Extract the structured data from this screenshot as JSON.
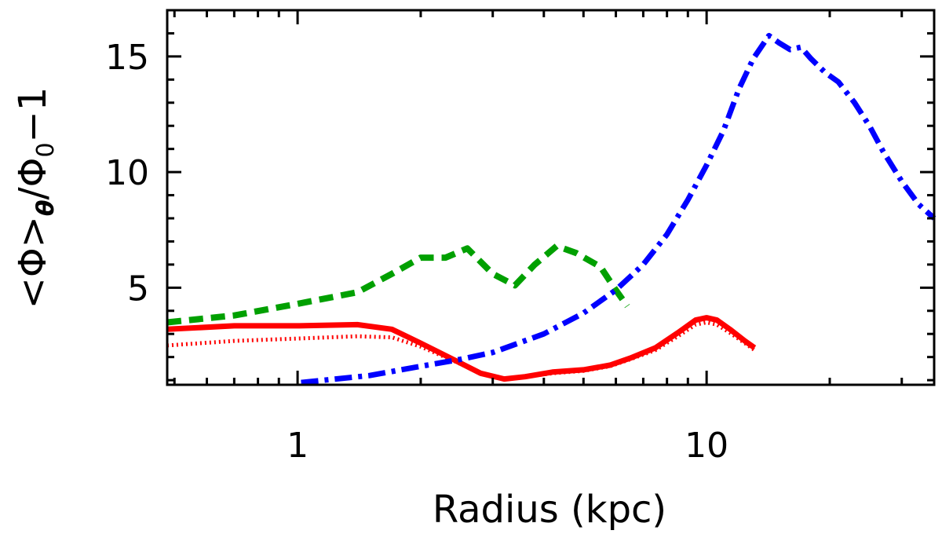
{
  "chart_data": {
    "type": "line",
    "title": "",
    "xlabel": "Radius (kpc)",
    "ylabel": {
      "left": "<Φ>",
      "sub1": "θ",
      "mid": "/Φ",
      "sub2": "0",
      "right": "−1"
    },
    "x_scale": "log",
    "xlim": [
      0.48,
      36
    ],
    "ylim": [
      0.8,
      17
    ],
    "x_ticks": [
      1,
      10
    ],
    "x_tick_labels": [
      "1",
      "10"
    ],
    "y_ticks": [
      5,
      10,
      15
    ],
    "y_tick_labels": [
      "5",
      "10",
      "15"
    ],
    "x_minor_ticks": [
      0.5,
      0.6,
      0.7,
      0.8,
      0.9,
      2,
      3,
      4,
      5,
      6,
      7,
      8,
      9,
      20,
      30
    ],
    "y_minor_ticks": [
      1,
      2,
      3,
      4,
      6,
      7,
      8,
      9,
      11,
      12,
      13,
      14,
      16
    ],
    "series": [
      {
        "name": "solid red",
        "style": "solid",
        "color": "#ff0000",
        "x": [
          0.48,
          0.7,
          1.0,
          1.4,
          1.7,
          2.0,
          2.4,
          2.8,
          3.2,
          3.6,
          4.2,
          5.0,
          5.8,
          6.5,
          7.5,
          8.5,
          9.4,
          10.0,
          10.6,
          11.4,
          12.4,
          13.1
        ],
        "y": [
          3.2,
          3.35,
          3.35,
          3.4,
          3.2,
          2.6,
          1.9,
          1.3,
          1.05,
          1.15,
          1.35,
          1.45,
          1.65,
          1.95,
          2.4,
          3.05,
          3.6,
          3.7,
          3.6,
          3.2,
          2.7,
          2.4
        ]
      },
      {
        "name": "dotted red",
        "style": "dotted",
        "color": "#ff0000",
        "x": [
          0.48,
          0.7,
          1.0,
          1.4,
          1.7,
          2.0,
          2.4,
          2.8,
          3.2,
          3.6,
          4.2,
          5.0,
          5.8,
          6.5,
          7.5,
          8.5,
          9.4,
          10.0,
          10.6,
          11.4,
          12.4,
          13.1
        ],
        "y": [
          2.5,
          2.7,
          2.8,
          2.9,
          2.85,
          2.45,
          1.85,
          1.3,
          1.05,
          1.15,
          1.3,
          1.4,
          1.6,
          1.9,
          2.3,
          2.9,
          3.4,
          3.5,
          3.4,
          3.05,
          2.6,
          2.3
        ]
      },
      {
        "name": "dashed green",
        "style": "dashed",
        "color": "#00a000",
        "x": [
          0.48,
          0.7,
          1.0,
          1.4,
          1.7,
          2.0,
          2.3,
          2.6,
          3.0,
          3.4,
          3.8,
          4.3,
          4.8,
          5.5,
          6.0,
          6.4
        ],
        "y": [
          3.5,
          3.8,
          4.3,
          4.8,
          5.6,
          6.3,
          6.3,
          6.7,
          5.6,
          5.1,
          6.0,
          6.8,
          6.5,
          5.9,
          4.9,
          4.2
        ]
      },
      {
        "name": "dash-dot blue",
        "style": "dashdot",
        "color": "#0000ff",
        "x": [
          1.02,
          1.5,
          2.0,
          2.5,
          3.0,
          4.0,
          5.0,
          6.0,
          7.0,
          8.0,
          9.0,
          10.0,
          11.0,
          12.0,
          13.0,
          14.2,
          15.0,
          16.0,
          17.0,
          18.0,
          19.5,
          21.0,
          23.0,
          25.0,
          27.0,
          30.0,
          33.0,
          36.0
        ],
        "y": [
          0.9,
          1.2,
          1.6,
          1.9,
          2.2,
          3.0,
          3.9,
          4.9,
          6.0,
          7.3,
          8.8,
          10.3,
          11.8,
          13.6,
          14.9,
          15.9,
          15.6,
          15.3,
          15.4,
          14.9,
          14.3,
          13.9,
          13.0,
          12.0,
          10.9,
          9.6,
          8.6,
          8.0
        ]
      }
    ]
  }
}
